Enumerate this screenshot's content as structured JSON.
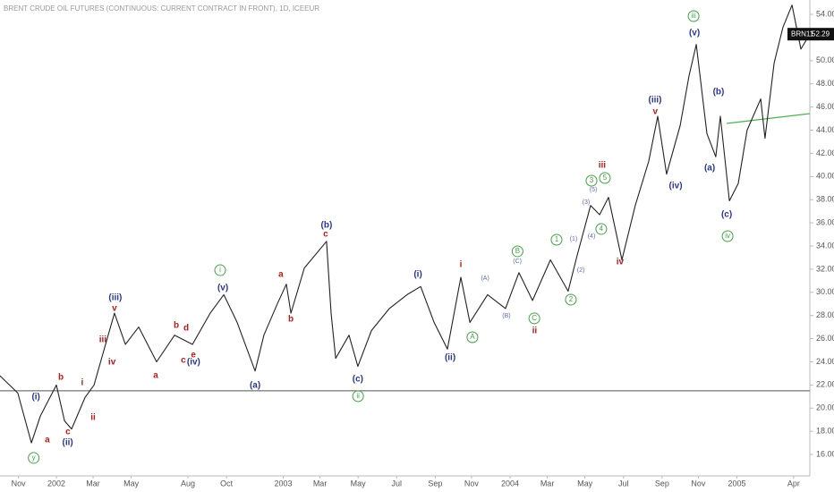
{
  "chart_data": {
    "type": "line",
    "title": "BRENT CRUDE OIL FUTURES (CONTINUOUS: CURRENT CONTRACT IN FRONT), 1D, ICEEUR",
    "symbol": "BRN11",
    "last_price": {
      "value": 52.29,
      "label": "52.29"
    },
    "xlim": [
      2001.7515,
      2005.3215
    ],
    "ylim": [
      14.15,
      55.24
    ],
    "grid": false,
    "xticks": [
      {
        "value": 2001.833,
        "label": "Nov"
      },
      {
        "value": 2002.0,
        "label": "2002"
      },
      {
        "value": 2002.162,
        "label": "Mar"
      },
      {
        "value": 2002.33,
        "label": "May"
      },
      {
        "value": 2002.58,
        "label": "Aug"
      },
      {
        "value": 2002.75,
        "label": "Oct"
      },
      {
        "value": 2003.0,
        "label": "2003"
      },
      {
        "value": 2003.162,
        "label": "Mar"
      },
      {
        "value": 2003.33,
        "label": "May"
      },
      {
        "value": 2003.5,
        "label": "Jul"
      },
      {
        "value": 2003.67,
        "label": "Sep"
      },
      {
        "value": 2003.83,
        "label": "Nov"
      },
      {
        "value": 2004.0,
        "label": "2004"
      },
      {
        "value": 2004.164,
        "label": "Mar"
      },
      {
        "value": 2004.33,
        "label": "May"
      },
      {
        "value": 2004.5,
        "label": "Jul"
      },
      {
        "value": 2004.67,
        "label": "Sep"
      },
      {
        "value": 2004.83,
        "label": "Nov"
      },
      {
        "value": 2005.0,
        "label": "2005"
      },
      {
        "value": 2005.25,
        "label": "Apr"
      }
    ],
    "yticks": [
      {
        "value": 16,
        "label": "16.00"
      },
      {
        "value": 18,
        "label": "18.00"
      },
      {
        "value": 20,
        "label": "20.00"
      },
      {
        "value": 22,
        "label": "22.00"
      },
      {
        "value": 24,
        "label": "24.00"
      },
      {
        "value": 26,
        "label": "26.00"
      },
      {
        "value": 28,
        "label": "28.00"
      },
      {
        "value": 30,
        "label": "30.00"
      },
      {
        "value": 32,
        "label": "32.00"
      },
      {
        "value": 34,
        "label": "34.00"
      },
      {
        "value": 36,
        "label": "36.00"
      },
      {
        "value": 38,
        "label": "38.00"
      },
      {
        "value": 40,
        "label": "40.00"
      },
      {
        "value": 42,
        "label": "42.00"
      },
      {
        "value": 44,
        "label": "44.00"
      },
      {
        "value": 46,
        "label": "46.00"
      },
      {
        "value": 48,
        "label": "48.00"
      },
      {
        "value": 50,
        "label": "50.00"
      },
      {
        "value": 52,
        "label": "52.00"
      },
      {
        "value": 54,
        "label": "54.00"
      }
    ],
    "series": [
      {
        "name": "BRN11",
        "color": "#222222",
        "x": [
          2001.751,
          2001.83,
          2001.89,
          2001.929,
          2002.0,
          2002.036,
          2002.067,
          2002.126,
          2002.166,
          2002.205,
          2002.256,
          2002.304,
          2002.363,
          2002.442,
          2002.521,
          2002.6,
          2002.678,
          2002.738,
          2002.797,
          2002.876,
          2002.915,
          2002.974,
          2003.014,
          2003.034,
          2003.093,
          2003.191,
          2003.211,
          2003.231,
          2003.29,
          2003.329,
          2003.389,
          2003.468,
          2003.546,
          2003.606,
          2003.665,
          2003.724,
          2003.783,
          2003.823,
          2003.901,
          2003.98,
          2004.039,
          2004.099,
          2004.178,
          2004.256,
          2004.296,
          2004.355,
          2004.395,
          2004.434,
          2004.493,
          2004.552,
          2004.611,
          2004.651,
          2004.69,
          2004.75,
          2004.789,
          2004.821,
          2004.868,
          2004.907,
          2004.927,
          2004.967,
          2005.006,
          2005.045,
          2005.105,
          2005.124,
          2005.164,
          2005.203,
          2005.243,
          2005.282,
          2005.3215
        ],
        "values": [
          22.8,
          21.3,
          17.0,
          19.3,
          22.0,
          18.9,
          18.2,
          20.9,
          22.0,
          24.7,
          28.2,
          25.5,
          27.0,
          24.0,
          26.3,
          25.5,
          28.2,
          29.8,
          27.4,
          23.2,
          26.3,
          29.0,
          30.7,
          28.2,
          32.1,
          34.4,
          28.2,
          24.3,
          26.3,
          23.6,
          26.7,
          28.6,
          29.8,
          30.5,
          27.4,
          25.1,
          31.3,
          27.4,
          29.8,
          28.6,
          31.7,
          29.3,
          32.8,
          30.1,
          33.2,
          37.5,
          36.7,
          38.2,
          32.8,
          37.5,
          41.3,
          45.2,
          40.2,
          44.4,
          48.7,
          51.4,
          43.7,
          41.7,
          45.2,
          37.9,
          39.4,
          44.0,
          46.7,
          43.3,
          49.8,
          52.9,
          54.8,
          51.0,
          52.29
        ]
      }
    ],
    "hlines": [
      {
        "y": 21.5,
        "color": "#555555"
      }
    ],
    "trendlines": [
      {
        "x": [
          2004.955,
          2005.3215
        ],
        "y": [
          44.58,
          45.43
        ],
        "color": "#4caf50"
      }
    ],
    "annotations": [
      {
        "text": "(i)",
        "x": 2001.91,
        "y": 20.95,
        "color": "#283593",
        "circled": false
      },
      {
        "text": "(ii)",
        "x": 2002.05,
        "y": 17.01,
        "color": "#283593",
        "circled": false
      },
      {
        "text": "(iii)",
        "x": 2002.26,
        "y": 29.52,
        "color": "#283593",
        "circled": false
      },
      {
        "text": "v",
        "x": 2002.256,
        "y": 28.59,
        "color": "#b71c1c",
        "circled": false
      },
      {
        "text": "iii",
        "x": 2002.205,
        "y": 25.89,
        "color": "#b71c1c",
        "circled": false
      },
      {
        "text": "iv",
        "x": 2002.245,
        "y": 23.96,
        "color": "#b71c1c",
        "circled": false
      },
      {
        "text": "b",
        "x": 2002.02,
        "y": 22.65,
        "color": "#b71c1c",
        "circled": false
      },
      {
        "text": "a",
        "x": 2001.96,
        "y": 17.24,
        "color": "#b71c1c",
        "circled": false
      },
      {
        "text": "c",
        "x": 2002.051,
        "y": 17.94,
        "color": "#b71c1c",
        "circled": false
      },
      {
        "text": "i",
        "x": 2002.114,
        "y": 22.19,
        "color": "#b71c1c",
        "circled": false
      },
      {
        "text": "ii",
        "x": 2002.162,
        "y": 19.17,
        "color": "#b71c1c",
        "circled": false
      },
      {
        "text": "y",
        "x": 2001.9,
        "y": 15.7,
        "color": "#43a047",
        "circled": true
      },
      {
        "text": "a",
        "x": 2002.438,
        "y": 22.8,
        "color": "#b71c1c",
        "circled": false
      },
      {
        "text": "b",
        "x": 2002.529,
        "y": 27.13,
        "color": "#b71c1c",
        "circled": false
      },
      {
        "text": "c",
        "x": 2002.56,
        "y": 24.12,
        "color": "#b71c1c",
        "circled": false
      },
      {
        "text": "d",
        "x": 2002.572,
        "y": 26.9,
        "color": "#b71c1c",
        "circled": false
      },
      {
        "text": "e",
        "x": 2002.604,
        "y": 24.58,
        "color": "#b71c1c",
        "circled": false
      },
      {
        "text": "(iv)",
        "x": 2002.605,
        "y": 23.96,
        "color": "#283593",
        "circled": false
      },
      {
        "text": "(v)",
        "x": 2002.734,
        "y": 30.37,
        "color": "#283593",
        "circled": false
      },
      {
        "text": "i",
        "x": 2002.722,
        "y": 31.91,
        "color": "#43a047",
        "circled": true
      },
      {
        "text": "(a)",
        "x": 2002.876,
        "y": 21.95,
        "color": "#283593",
        "circled": false
      },
      {
        "text": "a",
        "x": 2002.99,
        "y": 31.53,
        "color": "#b71c1c",
        "circled": false
      },
      {
        "text": "b",
        "x": 2003.034,
        "y": 27.67,
        "color": "#b71c1c",
        "circled": false
      },
      {
        "text": "c",
        "x": 2003.187,
        "y": 35.0,
        "color": "#b71c1c",
        "circled": false
      },
      {
        "text": "(b)",
        "x": 2003.191,
        "y": 35.78,
        "color": "#283593",
        "circled": false
      },
      {
        "text": "(c)",
        "x": 2003.329,
        "y": 22.49,
        "color": "#283593",
        "circled": false
      },
      {
        "text": "ii",
        "x": 2003.33,
        "y": 21.03,
        "color": "#43a047",
        "circled": true
      },
      {
        "text": "(i)",
        "x": 2003.594,
        "y": 31.53,
        "color": "#283593",
        "circled": false
      },
      {
        "text": "(ii)",
        "x": 2003.736,
        "y": 24.35,
        "color": "#283593",
        "circled": false
      },
      {
        "text": "i",
        "x": 2003.783,
        "y": 32.38,
        "color": "#b71c1c",
        "circled": false
      },
      {
        "text": "A",
        "x": 2003.834,
        "y": 26.12,
        "color": "#43a047",
        "circled": true
      },
      {
        "text": "(A)",
        "x": 2003.89,
        "y": 31.22,
        "color": "#5c6bc0",
        "circled": false
      },
      {
        "text": "(B)",
        "x": 2003.984,
        "y": 27.98,
        "color": "#5c6bc0",
        "circled": false
      },
      {
        "text": "(C)",
        "x": 2004.032,
        "y": 32.69,
        "color": "#5c6bc0",
        "circled": false
      },
      {
        "text": "B",
        "x": 2004.033,
        "y": 33.54,
        "color": "#43a047",
        "circled": true
      },
      {
        "text": "C",
        "x": 2004.107,
        "y": 27.75,
        "color": "#43a047",
        "circled": true
      },
      {
        "text": "ii",
        "x": 2004.108,
        "y": 26.66,
        "color": "#b71c1c",
        "circled": false
      },
      {
        "text": "1",
        "x": 2004.205,
        "y": 34.54,
        "color": "#43a047",
        "circled": true
      },
      {
        "text": "2",
        "x": 2004.268,
        "y": 29.37,
        "color": "#43a047",
        "circled": true
      },
      {
        "text": "(1)",
        "x": 2004.28,
        "y": 34.62,
        "color": "#5c6bc0",
        "circled": false
      },
      {
        "text": "(2)",
        "x": 2004.312,
        "y": 31.91,
        "color": "#5c6bc0",
        "circled": false
      },
      {
        "text": "(3)",
        "x": 2004.335,
        "y": 37.78,
        "color": "#5c6bc0",
        "circled": false
      },
      {
        "text": "(4)",
        "x": 2004.359,
        "y": 34.85,
        "color": "#5c6bc0",
        "circled": false
      },
      {
        "text": "(5)",
        "x": 2004.367,
        "y": 38.86,
        "color": "#5c6bc0",
        "circled": false
      },
      {
        "text": "3",
        "x": 2004.359,
        "y": 39.64,
        "color": "#43a047",
        "circled": true
      },
      {
        "text": "4",
        "x": 2004.402,
        "y": 35.47,
        "color": "#43a047",
        "circled": true
      },
      {
        "text": "5",
        "x": 2004.418,
        "y": 39.87,
        "color": "#43a047",
        "circled": true
      },
      {
        "text": "iii",
        "x": 2004.406,
        "y": 40.95,
        "color": "#b71c1c",
        "circled": false
      },
      {
        "text": "iv",
        "x": 2004.485,
        "y": 32.61,
        "color": "#b71c1c",
        "circled": false
      },
      {
        "text": "(iii)",
        "x": 2004.639,
        "y": 46.59,
        "color": "#283593",
        "circled": false
      },
      {
        "text": "v",
        "x": 2004.64,
        "y": 45.58,
        "color": "#b71c1c",
        "circled": false
      },
      {
        "text": "(iv)",
        "x": 2004.73,
        "y": 39.17,
        "color": "#283593",
        "circled": false
      },
      {
        "text": "iii",
        "x": 2004.809,
        "y": 53.85,
        "color": "#43a047",
        "circled": true
      },
      {
        "text": "(v)",
        "x": 2004.813,
        "y": 52.38,
        "color": "#283593",
        "circled": false
      },
      {
        "text": "(b)",
        "x": 2004.919,
        "y": 47.28,
        "color": "#283593",
        "circled": false
      },
      {
        "text": "(a)",
        "x": 2004.88,
        "y": 40.72,
        "color": "#283593",
        "circled": false
      },
      {
        "text": "(c)",
        "x": 2004.955,
        "y": 36.7,
        "color": "#283593",
        "circled": false
      },
      {
        "text": "iv",
        "x": 2004.959,
        "y": 34.85,
        "color": "#43a047",
        "circled": true
      }
    ]
  }
}
